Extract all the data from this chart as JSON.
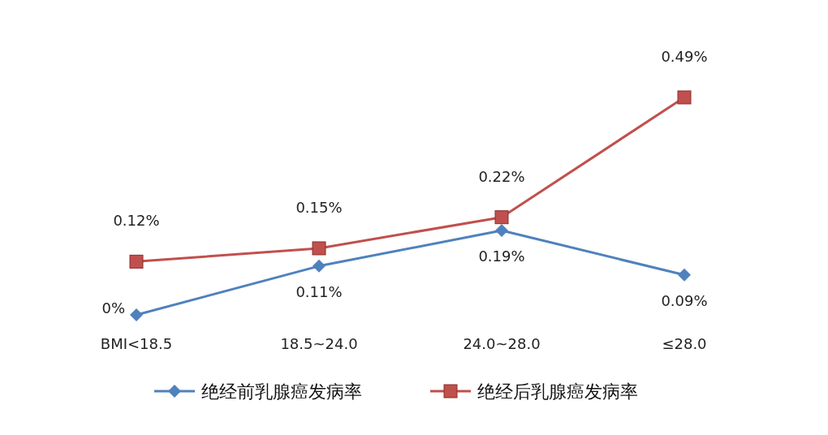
{
  "chart_data": {
    "type": "line",
    "categories": [
      "BMI<18.5",
      "18.5~24.0",
      "24.0~28.0",
      "≤28.0"
    ],
    "series": [
      {
        "name": "绝经前乳腺癌发病率",
        "color": "#4f81bd",
        "marker": "diamond",
        "values": [
          0,
          0.11,
          0.19,
          0.09
        ],
        "value_labels": [
          "0%",
          "0.11%",
          "0.19%",
          "0.09%"
        ]
      },
      {
        "name": "绝经后乳腺癌发病率",
        "color": "#c0504d",
        "marker": "square",
        "values": [
          0.12,
          0.15,
          0.22,
          0.49
        ],
        "value_labels": [
          "0.12%",
          "0.15%",
          "0.22%",
          "0.49%"
        ]
      }
    ],
    "legend": "bottom"
  }
}
